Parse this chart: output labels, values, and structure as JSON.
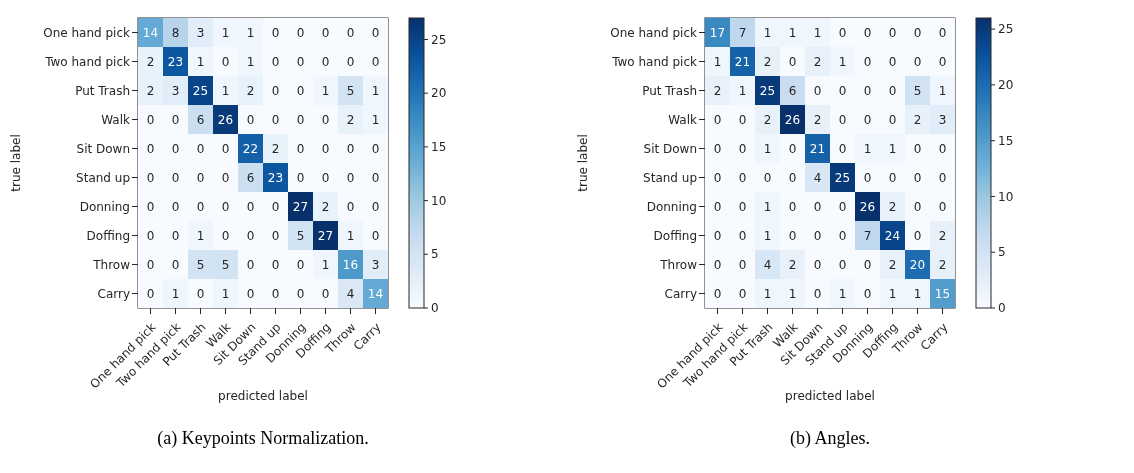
{
  "chart_data": [
    {
      "type": "heatmap",
      "xlabel": "predicted label",
      "ylabel": "true label",
      "annotations": [
        "(a) Keypoints Normalization."
      ],
      "categories": [
        "One hand pick",
        "Two hand pick",
        "Put Trash",
        "Walk",
        "Sit Down",
        "Stand up",
        "Donning",
        "Doffing",
        "Throw",
        "Carry"
      ],
      "y_categories": [
        "One hand pick",
        "Two hand pick",
        "Put Trash",
        "Walk",
        "Sit Down",
        "Stand up",
        "Donning",
        "Doffing",
        "Throw",
        "Carry"
      ],
      "cells": [
        [
          14,
          8,
          3,
          1,
          1,
          0,
          0,
          0,
          0,
          0
        ],
        [
          2,
          23,
          1,
          0,
          1,
          0,
          0,
          0,
          0,
          0
        ],
        [
          2,
          3,
          25,
          1,
          2,
          0,
          0,
          1,
          5,
          1
        ],
        [
          0,
          0,
          6,
          26,
          0,
          0,
          0,
          0,
          2,
          1
        ],
        [
          0,
          0,
          0,
          0,
          22,
          2,
          0,
          0,
          0,
          0
        ],
        [
          0,
          0,
          0,
          0,
          6,
          23,
          0,
          0,
          0,
          0
        ],
        [
          0,
          0,
          0,
          0,
          0,
          0,
          27,
          2,
          0,
          0
        ],
        [
          0,
          0,
          1,
          0,
          0,
          0,
          5,
          27,
          1,
          0
        ],
        [
          0,
          0,
          5,
          5,
          0,
          0,
          0,
          1,
          16,
          3
        ],
        [
          0,
          1,
          0,
          1,
          0,
          0,
          0,
          0,
          4,
          14
        ]
      ],
      "clim": [
        0,
        27
      ],
      "cticks": [
        0,
        5,
        10,
        15,
        20,
        25
      ],
      "data_labels": true
    },
    {
      "type": "heatmap",
      "xlabel": "predicted label",
      "ylabel": "true label",
      "annotations": [
        "(b) Angles."
      ],
      "categories": [
        "One hand pick",
        "Two hand pick",
        "Put Trash",
        "Walk",
        "Sit Down",
        "Stand up",
        "Donning",
        "Doffing",
        "Throw",
        "Carry"
      ],
      "y_categories": [
        "One hand pick",
        "Two hand pick",
        "Put Trash",
        "Walk",
        "Sit Down",
        "Stand up",
        "Donning",
        "Doffing",
        "Throw",
        "Carry"
      ],
      "cells": [
        [
          17,
          7,
          1,
          1,
          1,
          0,
          0,
          0,
          0,
          0
        ],
        [
          1,
          21,
          2,
          0,
          2,
          1,
          0,
          0,
          0,
          0
        ],
        [
          2,
          1,
          25,
          6,
          0,
          0,
          0,
          0,
          5,
          1
        ],
        [
          0,
          0,
          2,
          26,
          2,
          0,
          0,
          0,
          2,
          3
        ],
        [
          0,
          0,
          1,
          0,
          21,
          0,
          1,
          1,
          0,
          0
        ],
        [
          0,
          0,
          0,
          0,
          4,
          25,
          0,
          0,
          0,
          0
        ],
        [
          0,
          0,
          1,
          0,
          0,
          0,
          26,
          2,
          0,
          0
        ],
        [
          0,
          0,
          1,
          0,
          0,
          0,
          7,
          24,
          0,
          2
        ],
        [
          0,
          0,
          4,
          2,
          0,
          0,
          0,
          2,
          20,
          2
        ],
        [
          0,
          0,
          1,
          1,
          0,
          1,
          0,
          1,
          1,
          15
        ]
      ],
      "clim": [
        0,
        26
      ],
      "cticks": [
        0,
        5,
        10,
        15,
        20,
        25
      ],
      "data_labels": true
    }
  ]
}
